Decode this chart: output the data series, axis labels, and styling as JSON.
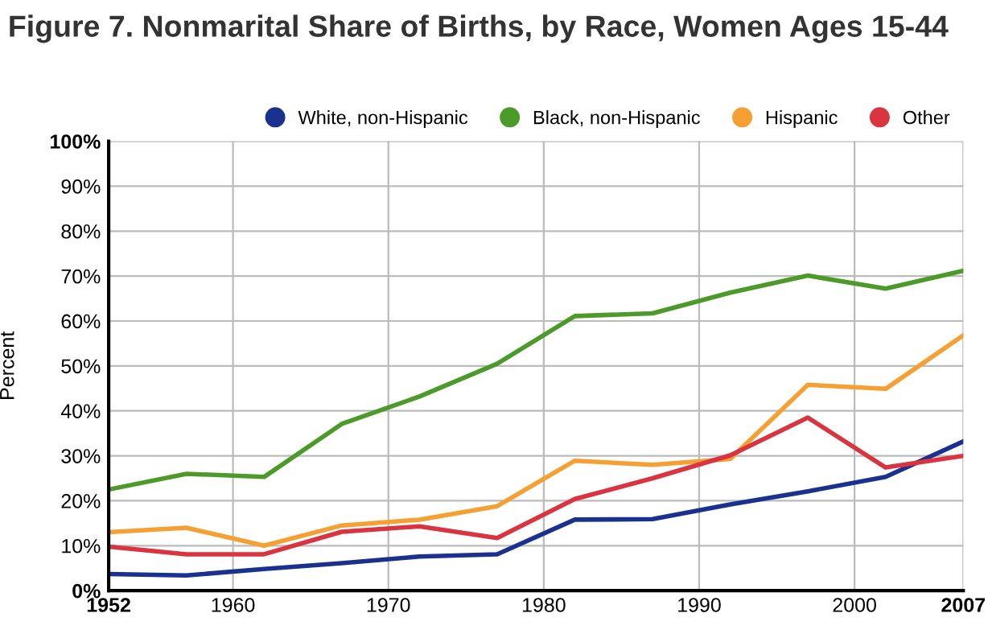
{
  "chart_data": {
    "type": "line",
    "title": "Figure 7. Nonmarital Share of Births, by Race, Women Ages 15-44",
    "ylabel": "Percent",
    "x": [
      1952,
      1957,
      1962,
      1967,
      1972,
      1977,
      1982,
      1987,
      1992,
      1997,
      2002,
      2007
    ],
    "series": [
      {
        "name": "White, non-Hispanic",
        "color": "#1b3190",
        "values": [
          3.7,
          3.4,
          4.8,
          6.1,
          7.6,
          8.1,
          15.8,
          15.9,
          19.2,
          22.1,
          25.3,
          33.2
        ]
      },
      {
        "name": "Black, non-Hispanic",
        "color": "#4c9a2a",
        "values": [
          22.5,
          26,
          25.3,
          37.1,
          43.2,
          50.5,
          61.1,
          61.7,
          66.3,
          70.1,
          67.2,
          71.2
        ]
      },
      {
        "name": "Hispanic",
        "color": "#f6a033",
        "values": [
          13,
          14,
          10,
          14.5,
          15.8,
          18.8,
          28.9,
          28,
          29.3,
          45.8,
          44.9,
          56.8
        ]
      },
      {
        "name": "Other",
        "color": "#d9343f",
        "values": [
          9.8,
          8.1,
          8.1,
          13.1,
          14.3,
          11.7,
          20.4,
          25,
          30.1,
          38.5,
          27.4,
          30
        ]
      }
    ],
    "xlim": [
      1952,
      2007
    ],
    "xticks": [
      1952,
      1960,
      1970,
      1980,
      1990,
      2000,
      2007
    ],
    "ylim": [
      0,
      100
    ],
    "yticks": [
      {
        "value": 0,
        "label": "0%"
      },
      {
        "value": 10,
        "label": "10%"
      },
      {
        "value": 20,
        "label": "20%"
      },
      {
        "value": 30,
        "label": "30%"
      },
      {
        "value": 40,
        "label": "40%"
      },
      {
        "value": 50,
        "label": "50%"
      },
      {
        "value": 60,
        "label": "60%"
      },
      {
        "value": 70,
        "label": "70%"
      },
      {
        "value": 80,
        "label": "80%"
      },
      {
        "value": 90,
        "label": "90%"
      },
      {
        "value": 100,
        "label": "100%"
      }
    ],
    "grid": true,
    "legend": "top right",
    "marker": "none",
    "line_style": "solid"
  }
}
